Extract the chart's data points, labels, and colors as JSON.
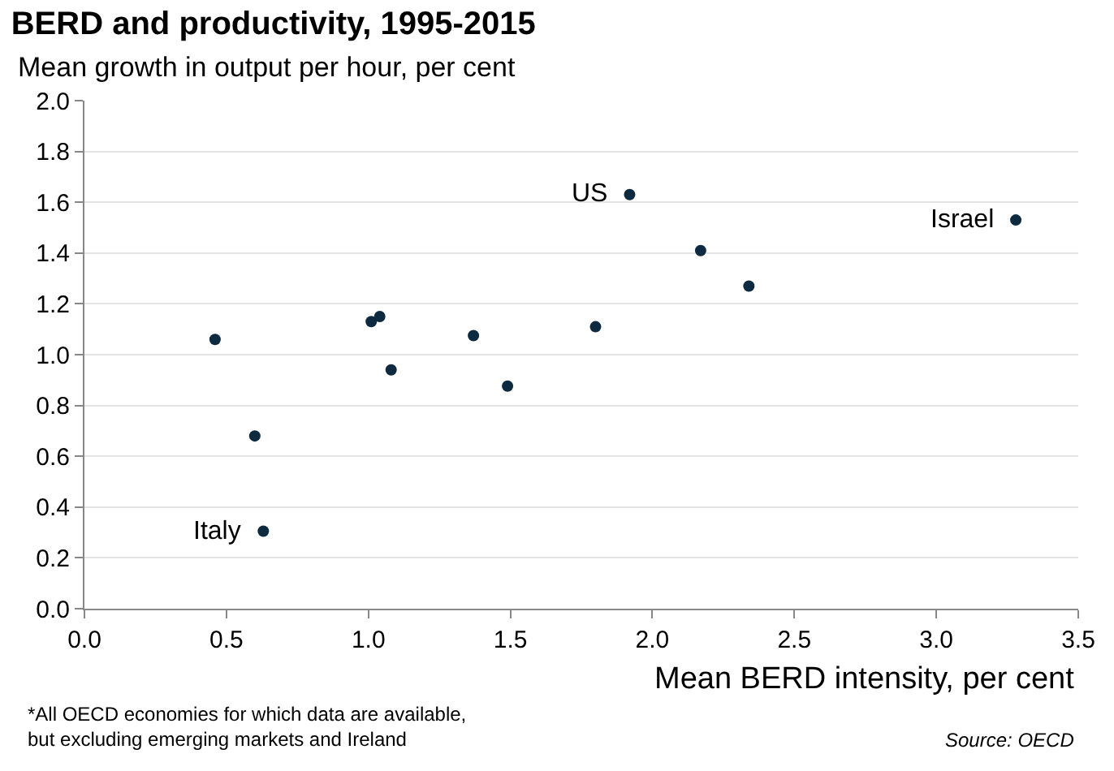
{
  "chart_data": {
    "type": "scatter",
    "title": "BERD and productivity, 1995-2015",
    "subtitle": "Mean growth in output per hour, per cent",
    "xlabel": "Mean BERD intensity, per cent",
    "x": [
      0.46,
      0.6,
      0.63,
      1.01,
      1.04,
      1.08,
      1.37,
      1.49,
      1.8,
      1.92,
      2.17,
      2.34,
      3.28
    ],
    "series": [
      {
        "color": "#0d2a40",
        "values": [
          1.06,
          0.68,
          0.305,
          1.13,
          1.15,
          0.94,
          1.075,
          0.876,
          1.11,
          1.63,
          1.41,
          1.27,
          1.53
        ]
      }
    ],
    "xlim": [
      0,
      3.5
    ],
    "xticks": [
      {
        "value": 0,
        "label": "0.0"
      },
      {
        "value": 0.5,
        "label": "0.5"
      },
      {
        "value": 1,
        "label": "1.0"
      },
      {
        "value": 1.5,
        "label": "1.5"
      },
      {
        "value": 2,
        "label": "2.0"
      },
      {
        "value": 2.5,
        "label": "2.5"
      },
      {
        "value": 3,
        "label": "3.0"
      },
      {
        "value": 3.5,
        "label": "3.5"
      }
    ],
    "ylim": [
      0,
      2
    ],
    "yticks": [
      {
        "value": 0,
        "label": "0.0"
      },
      {
        "value": 0.2,
        "label": "0.2"
      },
      {
        "value": 0.4,
        "label": "0.4"
      },
      {
        "value": 0.6,
        "label": "0.6"
      },
      {
        "value": 0.8,
        "label": "0.8"
      },
      {
        "value": 1,
        "label": "1.0"
      },
      {
        "value": 1.2,
        "label": "1.2"
      },
      {
        "value": 1.4,
        "label": "1.4"
      },
      {
        "value": 1.6,
        "label": "1.6"
      },
      {
        "value": 1.8,
        "label": "1.8"
      },
      {
        "value": 2,
        "label": "2.0"
      }
    ],
    "grid": "y",
    "marker": "circle",
    "annotations": [
      {
        "text": "Italy",
        "x": 0.63,
        "y": 0.305
      },
      {
        "text": "US",
        "x": 1.92,
        "y": 1.63
      },
      {
        "text": "Israel",
        "x": 3.28,
        "y": 1.53
      },
      "*All OECD economies for which data are available,\nbut excluding emerging markets and Ireland",
      "Source: OECD"
    ]
  }
}
